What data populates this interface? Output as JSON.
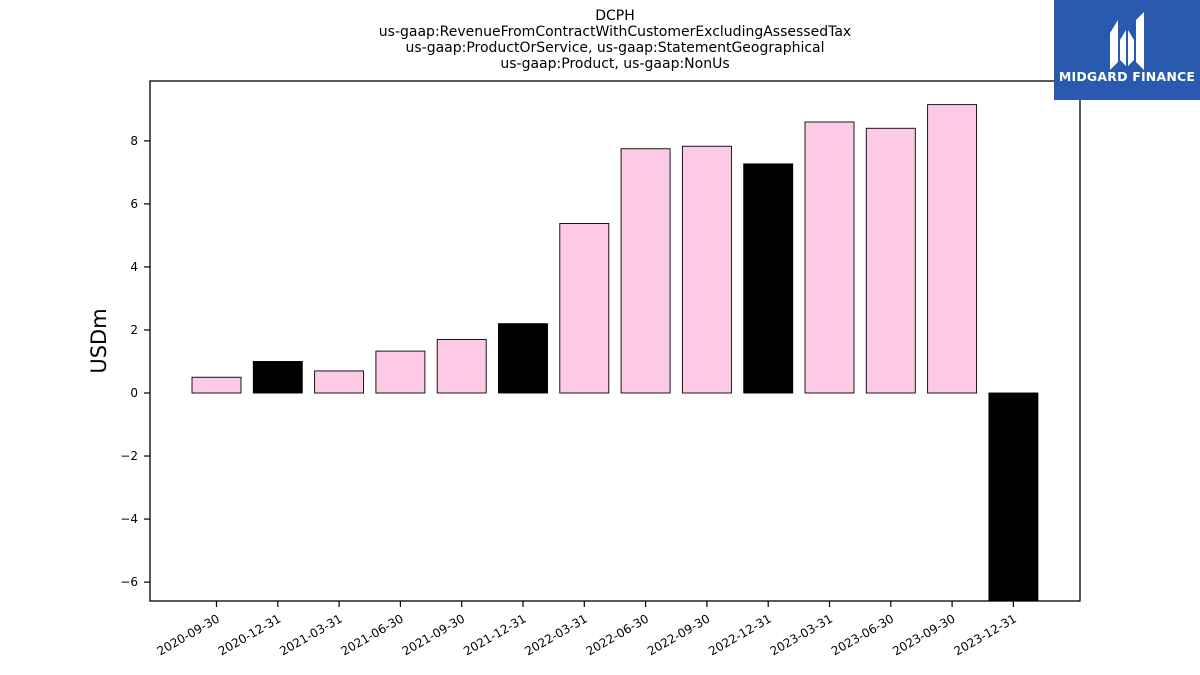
{
  "chart_data": {
    "type": "bar",
    "title_lines": [
      "DCPH",
      "us-gaap:RevenueFromContractWithCustomerExcludingAssessedTax",
      "us-gaap:ProductOrService, us-gaap:StatementGeographical",
      "us-gaap:Product, us-gaap:NonUs"
    ],
    "xlabel": "",
    "ylabel": "USDm",
    "ylim": [
      -6.6,
      9.9
    ],
    "yticks": [
      -6,
      -4,
      -2,
      0,
      2,
      4,
      6,
      8
    ],
    "categories": [
      "2020-09-30",
      "2020-12-31",
      "2021-03-31",
      "2021-06-30",
      "2021-09-30",
      "2021-12-31",
      "2022-03-31",
      "2022-06-30",
      "2022-09-30",
      "2022-12-31",
      "2023-03-31",
      "2023-06-30",
      "2023-09-30",
      "2023-12-31"
    ],
    "values": [
      0.5,
      1.0,
      0.7,
      1.33,
      1.7,
      2.2,
      5.38,
      7.75,
      7.83,
      7.27,
      8.6,
      8.4,
      9.15,
      -6.6
    ],
    "bar_colors": [
      "#fccae5",
      "#000000",
      "#fccae5",
      "#fccae5",
      "#fccae5",
      "#000000",
      "#fccae5",
      "#fccae5",
      "#fccae5",
      "#000000",
      "#fccae5",
      "#fccae5",
      "#fccae5",
      "#000000"
    ],
    "grid": false,
    "legend": "none"
  },
  "logo": {
    "text": "MIDGARD FINANCE",
    "color": "#2a5ab0"
  }
}
